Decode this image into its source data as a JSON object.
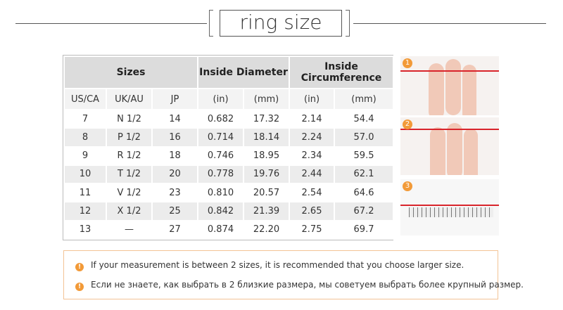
{
  "header": {
    "title": "ring size"
  },
  "table": {
    "group_headers": [
      "Sizes",
      "Inside Diameter",
      "Inside Circumference"
    ],
    "columns": [
      "US/CA",
      "UK/AU",
      "JP",
      "(in)",
      "(mm)",
      "(in)",
      "(mm)"
    ],
    "rows": [
      [
        "7",
        "N 1/2",
        "14",
        "0.682",
        "17.32",
        "2.14",
        "54.4"
      ],
      [
        "8",
        "P 1/2",
        "16",
        "0.714",
        "18.14",
        "2.24",
        "57.0"
      ],
      [
        "9",
        "R 1/2",
        "18",
        "0.746",
        "18.95",
        "2.34",
        "59.5"
      ],
      [
        "10",
        "T 1/2",
        "20",
        "0.778",
        "19.76",
        "2.44",
        "62.1"
      ],
      [
        "11",
        "V 1/2",
        "23",
        "0.810",
        "20.57",
        "2.54",
        "64.6"
      ],
      [
        "12",
        "X 1/2",
        "25",
        "0.842",
        "21.39",
        "2.65",
        "67.2"
      ],
      [
        "13",
        "—",
        "27",
        "0.874",
        "22.20",
        "2.75",
        "69.7"
      ]
    ]
  },
  "steps": [
    "1",
    "2",
    "3"
  ],
  "notes": [
    "If your measurement is between 2 sizes, it is recommended that you choose larger size.",
    "Если не знаете, как выбрать в 2 близкие размера, мы советуем выбрать более крупный размер."
  ]
}
